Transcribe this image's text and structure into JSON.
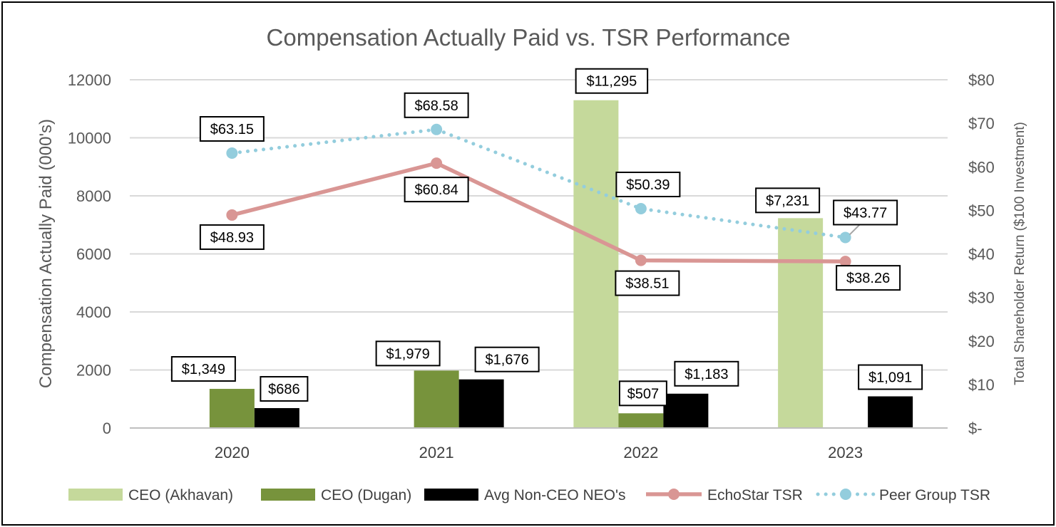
{
  "chart_data": {
    "type": "bar",
    "title": "Compensation Actually Paid vs. TSR Performance",
    "categories": [
      "2020",
      "2021",
      "2022",
      "2023"
    ],
    "ylabel": "Compensation Actually Paid (000's)",
    "ylim": [
      0,
      12000
    ],
    "yticks": [
      "0",
      "2000",
      "4000",
      "6000",
      "8000",
      "10000",
      "12000"
    ],
    "y2label": "Total Shareholder Return ($100 Investment)",
    "y2lim": [
      0,
      80
    ],
    "y2ticks": [
      "$-",
      "$10",
      "$20",
      "$30",
      "$40",
      "$50",
      "$60",
      "$70",
      "$80"
    ],
    "grid": true,
    "legend_position": "bottom",
    "bar_series": [
      {
        "name": "CEO (Akhavan)",
        "color": "#C5D99B",
        "values": [
          null,
          null,
          11295,
          7231
        ],
        "labels": [
          null,
          null,
          "$11,295",
          "$7,231"
        ]
      },
      {
        "name": "CEO (Dugan)",
        "color": "#77933C",
        "values": [
          1349,
          1979,
          507,
          null
        ],
        "labels": [
          "$1,349",
          "$1,979",
          "$507",
          null
        ]
      },
      {
        "name": "Avg Non-CEO NEO's",
        "color": "#000000",
        "values": [
          686,
          1676,
          1183,
          1091
        ],
        "labels": [
          "$686",
          "$1,676",
          "$1,183",
          "$1,091"
        ]
      }
    ],
    "line_series": [
      {
        "name": "EchoStar TSR",
        "color": "#D99694",
        "style": "solid",
        "axis": "right",
        "values": [
          48.93,
          60.84,
          38.51,
          38.26
        ],
        "labels": [
          "$48.93",
          "$60.84",
          "$38.51",
          "$38.26"
        ]
      },
      {
        "name": "Peer Group TSR",
        "color": "#93CDDD",
        "style": "dotted",
        "axis": "right",
        "values": [
          63.15,
          68.58,
          50.39,
          43.77
        ],
        "labels": [
          "$63.15",
          "$68.58",
          "$50.39",
          "$43.77"
        ]
      }
    ]
  }
}
